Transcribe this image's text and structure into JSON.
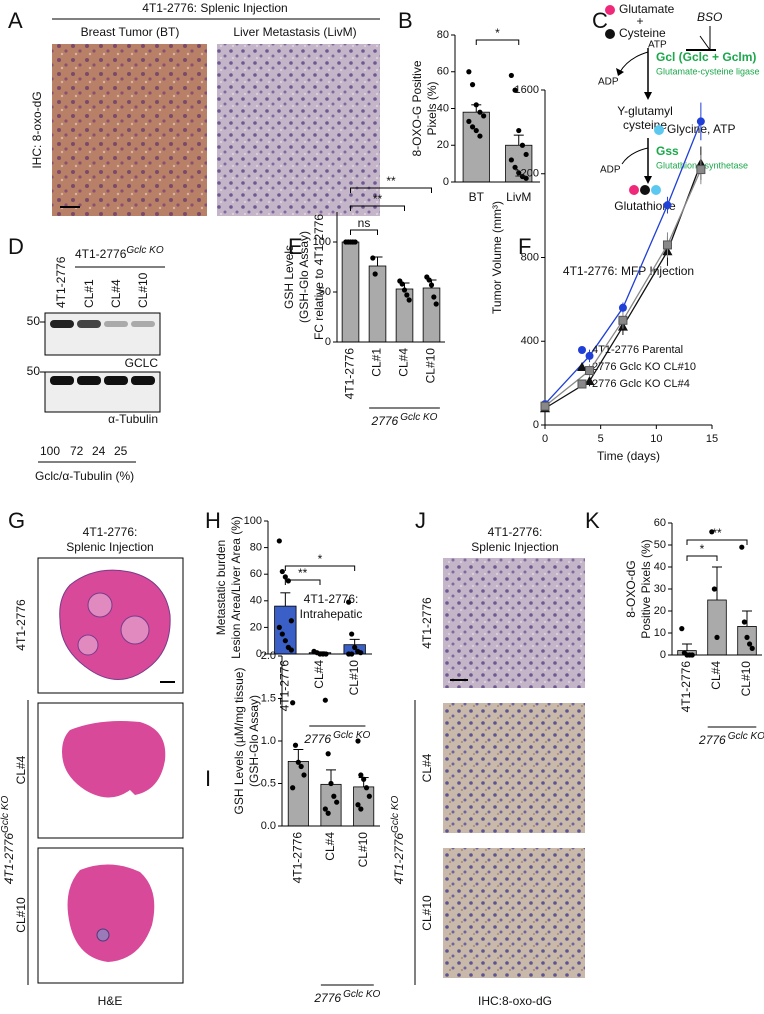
{
  "panel_labels": [
    "A",
    "B",
    "C",
    "D",
    "E",
    "F",
    "G",
    "H",
    "I",
    "J",
    "K"
  ],
  "panel_A": {
    "title": "4T1-2776: Splenic Injection",
    "images": [
      "Breast Tumor (BT)",
      "Liver Metastasis (LivM)"
    ],
    "ylabel": "IHC: 8-oxo-dG"
  },
  "panel_C": {
    "substrate_1": "Glutamate",
    "plus": "+",
    "substrate_2": "Cysteine",
    "atp": "ATP",
    "inhibitor": "BSO",
    "enzyme_1": "Gcl (Gclc + Gclm)",
    "enzyme_1_name": "Glutamate-cysteine ligase",
    "adp_1": "ADP",
    "intermediate": [
      "Y-glutamyl",
      "cysteine"
    ],
    "cofactor": "Glycine, ATP",
    "enzyme_2": "Gss",
    "enzyme_2_name": "Glutathione synthetase",
    "adp_2": "ADP",
    "product": "Glutathione"
  },
  "panel_D": {
    "header": "4T1-2776",
    "header_sup": "Gclc KO",
    "lanes": [
      "4T1-2776",
      "CL#1",
      "CL#4",
      "CL#10"
    ],
    "markers": [
      50,
      50
    ],
    "blots": [
      "GCLC",
      "α-Tubulin"
    ],
    "quantification": [
      100,
      72,
      24,
      25
    ],
    "quant_label": "Gclc/α-Tubulin (%)"
  },
  "panel_G": {
    "title": [
      "4T1-2776:",
      "Splenic Injection"
    ],
    "rows": [
      "4T1-2776",
      "CL#4",
      "CL#10"
    ],
    "group": "4T1-2776",
    "group_sup": "Gclc KO",
    "footer": "H&E"
  },
  "panel_J": {
    "title": [
      "4T1-2776:",
      "Splenic Injection"
    ],
    "rows": [
      "4T1-2776",
      "CL#4",
      "CL#10"
    ],
    "group": "4T1-2776",
    "group_sup": "Gclc KO",
    "footer": "IHC:8-oxo-dG"
  },
  "chart_data": [
    {
      "type": "bar",
      "categories": [
        "BT",
        "LivM"
      ],
      "values": [
        38,
        20
      ],
      "errors": [
        4,
        5.5
      ],
      "points": [
        [
          60,
          53,
          42,
          38,
          36,
          33,
          30,
          28,
          25
        ],
        [
          58,
          50,
          28,
          20,
          15,
          12,
          8,
          5,
          3,
          2
        ]
      ],
      "color": "#aaaaaa",
      "ylim": [
        0,
        80
      ],
      "yticks": [
        0,
        20,
        40,
        60,
        80
      ],
      "ylabel": [
        "8-OXO-G Positive",
        "Pixels (%)"
      ],
      "annotations": [
        {
          "label": "*",
          "from": 0,
          "to": 1
        }
      ]
    },
    {
      "type": "bar",
      "categories": [
        "4T1-2776",
        "CL#1",
        "CL#4",
        "CL#10"
      ],
      "values": [
        100,
        76,
        53,
        54
      ],
      "errors": [
        0,
        9,
        6,
        8
      ],
      "points": [
        [
          100,
          100,
          100,
          100,
          100
        ],
        [
          84,
          68
        ],
        [
          61,
          58,
          52,
          47,
          42
        ],
        [
          65,
          62,
          57,
          45,
          38
        ]
      ],
      "color": "#aaaaaa",
      "ylim": [
        0,
        130
      ],
      "yticks": [
        0,
        50,
        100
      ],
      "ylabel": [
        "GSH Levels",
        "(GSH-Glo Assay)",
        "FC relative to 4T1-2776"
      ],
      "annotations": [
        {
          "label": "ns",
          "from": 0,
          "to": 1
        },
        {
          "label": "**",
          "from": 0,
          "to": 2
        },
        {
          "label": "**",
          "from": 0,
          "to": 3
        }
      ],
      "group_label": {
        "text": "2776",
        "sup": "Gclc KO"
      }
    },
    {
      "type": "line",
      "title": "4T1-2776:  MFP Injection",
      "xlabel": "Time (days)",
      "ylabel": "Tumor Volume (mm³)",
      "x": [
        0,
        4,
        7,
        11,
        14
      ],
      "xlim": [
        0,
        15
      ],
      "xticks": [
        0,
        5,
        10,
        15
      ],
      "ylim": [
        0,
        1600
      ],
      "yticks": [
        0,
        400,
        800,
        1200,
        1600
      ],
      "legend": "lower right",
      "series": [
        {
          "name": "4T1-2776 Parental",
          "color": "#1f3fd6",
          "marker": "circle",
          "values": [
            100,
            330,
            560,
            1050,
            1450
          ],
          "errors": [
            20,
            30,
            25,
            40,
            90
          ]
        },
        {
          "name": "2776 Gclc KO CL#10",
          "color": "#111111",
          "marker": "triangle",
          "values": [
            80,
            210,
            470,
            830,
            1250
          ],
          "errors": [
            15,
            25,
            40,
            70,
            80
          ]
        },
        {
          "name": "2776 Gclc KO CL#4",
          "color": "#888888",
          "marker": "square",
          "values": [
            90,
            260,
            500,
            860,
            1220
          ],
          "errors": [
            20,
            30,
            40,
            60,
            70
          ]
        }
      ]
    },
    {
      "type": "bar",
      "categories": [
        "4T1-2776",
        "CL#4",
        "CL#10"
      ],
      "values": [
        36,
        1,
        7
      ],
      "errors": [
        10,
        0.6,
        4
      ],
      "points": [
        [
          85,
          62,
          58,
          55,
          25,
          20,
          15,
          10,
          5,
          3
        ],
        [
          2,
          1,
          0,
          0,
          0
        ],
        [
          39,
          15,
          5,
          2,
          1,
          0,
          0
        ]
      ],
      "color": "#3a5fc7",
      "ylim": [
        0,
        100
      ],
      "yticks": [
        0,
        20,
        40,
        60,
        80,
        100
      ],
      "ylabel": [
        "Metastatic burden",
        "Lesion Area/Liver Area (%)"
      ],
      "annotations": [
        {
          "label": "**",
          "from": 0,
          "to": 1
        },
        {
          "label": "*",
          "from": 0,
          "to": 2
        }
      ],
      "group_label": {
        "text": "2776",
        "sup": "Gclc KO"
      }
    },
    {
      "type": "bar",
      "title": [
        "4T1-2776:",
        "Intrahepatic"
      ],
      "categories": [
        "4T1-2776",
        "CL#4",
        "CL#10"
      ],
      "values": [
        0.76,
        0.49,
        0.46
      ],
      "errors": [
        0.14,
        0.17,
        0.11
      ],
      "points": [
        [
          1.45,
          0.95,
          0.75,
          0.7,
          0.6,
          0.45
        ],
        [
          1.48,
          0.85,
          0.5,
          0.35,
          0.28,
          0.2,
          0.15
        ],
        [
          1.0,
          0.6,
          0.55,
          0.45,
          0.35,
          0.25,
          0.2
        ]
      ],
      "color": "#aaaaaa",
      "ylim": [
        0,
        2
      ],
      "yticks": [
        {
          "value": 0,
          "label": "0.0"
        },
        {
          "value": 0.5,
          "label": "0.5"
        },
        {
          "value": 1,
          "label": "1.0"
        },
        {
          "value": 1.5,
          "label": "1.5"
        },
        {
          "value": 2,
          "label": "2.0"
        }
      ],
      "ylabel": [
        "GSH Levels (µM/mg tissue)",
        "(GSH-Glo Assay)"
      ],
      "group_label": {
        "text": "2776",
        "sup": "Gclc KO"
      }
    },
    {
      "type": "bar",
      "categories": [
        "4T1-2776",
        "CL#4",
        "CL#10"
      ],
      "values": [
        2,
        25,
        13
      ],
      "errors": [
        3,
        15,
        7
      ],
      "points": [
        [
          12,
          1,
          0,
          0,
          0
        ],
        [
          56,
          30,
          8
        ],
        [
          49,
          15,
          8,
          5,
          3
        ]
      ],
      "color": "#aaaaaa",
      "ylim": [
        0,
        60
      ],
      "yticks": [
        0,
        10,
        20,
        30,
        40,
        50,
        60
      ],
      "ylabel": [
        "8-OXO-dG",
        "Positive Pixels (%)"
      ],
      "annotations": [
        {
          "label": "*",
          "from": 0,
          "to": 1
        },
        {
          "label": "**",
          "from": 0,
          "to": 2
        }
      ],
      "group_label": {
        "text": "2776",
        "sup": "Gclc KO"
      }
    }
  ]
}
